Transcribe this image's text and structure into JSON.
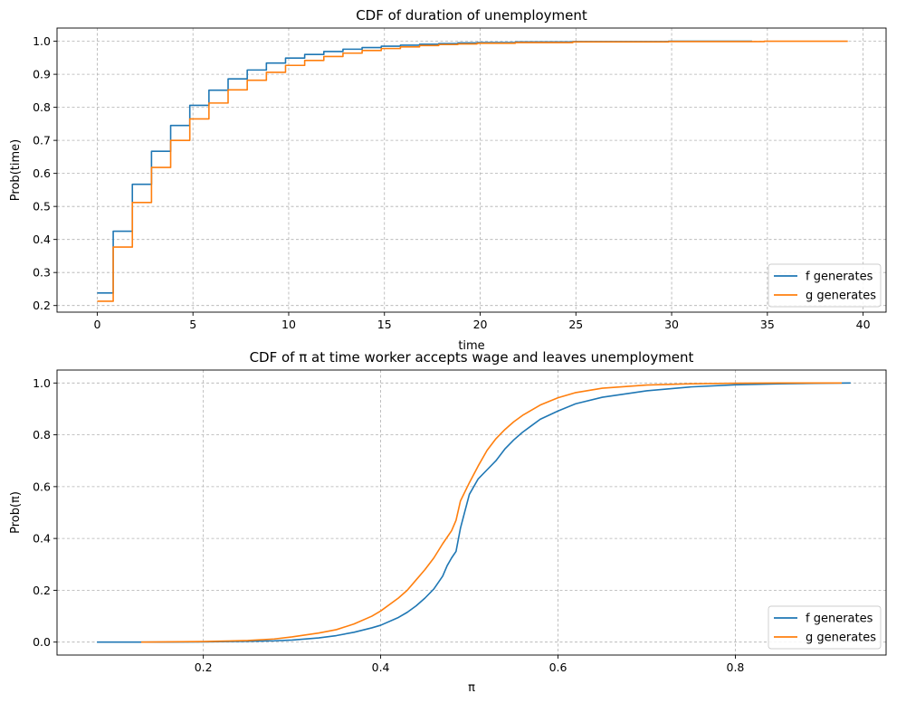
{
  "chart_data": [
    {
      "type": "line",
      "title": "CDF of duration of unemployment",
      "xlabel": "time",
      "ylabel": "Prob(time)",
      "xlim": [
        -2.1,
        41.2
      ],
      "ylim": [
        0.18,
        1.04
      ],
      "xticks": [
        0,
        5,
        10,
        15,
        20,
        25,
        30,
        35,
        40
      ],
      "yticks": [
        0.2,
        0.3,
        0.4,
        0.5,
        0.6,
        0.7,
        0.8,
        0.9,
        1.0
      ],
      "tick_decimals": 1,
      "grid": true,
      "step": true,
      "legend_position": "lower-right",
      "series": [
        {
          "name": "f generates",
          "color": "#1f77b4",
          "x": [
            0,
            1,
            2,
            3,
            4,
            5,
            6,
            7,
            8,
            9,
            10,
            11,
            12,
            13,
            14,
            15,
            16,
            17,
            18,
            19,
            20,
            22,
            25,
            30,
            34.2
          ],
          "y": [
            0.238,
            0.425,
            0.567,
            0.667,
            0.745,
            0.806,
            0.852,
            0.886,
            0.913,
            0.934,
            0.949,
            0.96,
            0.969,
            0.976,
            0.981,
            0.985,
            0.988,
            0.991,
            0.993,
            0.995,
            0.996,
            0.998,
            0.999,
            1.0,
            1.0
          ]
        },
        {
          "name": "g generates",
          "color": "#ff7f0e",
          "x": [
            0,
            1,
            2,
            3,
            4,
            5,
            6,
            7,
            8,
            9,
            10,
            11,
            12,
            13,
            14,
            15,
            16,
            17,
            18,
            19,
            20,
            22,
            25,
            30,
            35,
            39.2
          ],
          "y": [
            0.213,
            0.377,
            0.512,
            0.618,
            0.7,
            0.765,
            0.813,
            0.853,
            0.882,
            0.906,
            0.927,
            0.942,
            0.954,
            0.964,
            0.972,
            0.978,
            0.983,
            0.987,
            0.99,
            0.992,
            0.994,
            0.996,
            0.998,
            0.999,
            1.0,
            1.0
          ]
        }
      ]
    },
    {
      "type": "line",
      "title": "CDF of π at time worker accepts wage and leaves unemployment",
      "xlabel": "π",
      "ylabel": "Prob(π)",
      "xlim": [
        0.035,
        0.97
      ],
      "ylim": [
        -0.05,
        1.05
      ],
      "xticks": [
        0.2,
        0.4,
        0.6,
        0.8
      ],
      "yticks": [
        0.0,
        0.2,
        0.4,
        0.6,
        0.8,
        1.0
      ],
      "tick_decimals": 1,
      "grid": true,
      "step": false,
      "legend_position": "lower-right",
      "series": [
        {
          "name": "f generates",
          "color": "#1f77b4",
          "x": [
            0.08,
            0.15,
            0.2,
            0.25,
            0.28,
            0.3,
            0.33,
            0.35,
            0.37,
            0.39,
            0.4,
            0.42,
            0.43,
            0.44,
            0.45,
            0.46,
            0.47,
            0.475,
            0.48,
            0.485,
            0.49,
            0.5,
            0.51,
            0.52,
            0.53,
            0.54,
            0.55,
            0.56,
            0.57,
            0.58,
            0.6,
            0.62,
            0.65,
            0.7,
            0.75,
            0.8,
            0.85,
            0.9,
            0.93
          ],
          "y": [
            0.0,
            0.0,
            0.001,
            0.003,
            0.005,
            0.008,
            0.016,
            0.025,
            0.038,
            0.055,
            0.065,
            0.095,
            0.115,
            0.14,
            0.17,
            0.205,
            0.255,
            0.295,
            0.325,
            0.35,
            0.44,
            0.57,
            0.63,
            0.665,
            0.7,
            0.745,
            0.78,
            0.81,
            0.835,
            0.86,
            0.892,
            0.92,
            0.945,
            0.97,
            0.985,
            0.993,
            0.997,
            0.999,
            1.0
          ]
        },
        {
          "name": "g generates",
          "color": "#ff7f0e",
          "x": [
            0.13,
            0.2,
            0.25,
            0.28,
            0.3,
            0.33,
            0.35,
            0.37,
            0.39,
            0.4,
            0.42,
            0.43,
            0.44,
            0.45,
            0.46,
            0.47,
            0.48,
            0.485,
            0.49,
            0.5,
            0.51,
            0.52,
            0.53,
            0.54,
            0.55,
            0.56,
            0.58,
            0.6,
            0.62,
            0.65,
            0.7,
            0.75,
            0.8,
            0.85,
            0.9,
            0.92
          ],
          "y": [
            0.0,
            0.002,
            0.006,
            0.012,
            0.02,
            0.035,
            0.048,
            0.07,
            0.1,
            0.12,
            0.17,
            0.2,
            0.24,
            0.28,
            0.325,
            0.38,
            0.43,
            0.47,
            0.545,
            0.615,
            0.68,
            0.74,
            0.785,
            0.82,
            0.85,
            0.875,
            0.915,
            0.943,
            0.963,
            0.98,
            0.992,
            0.997,
            0.999,
            1.0,
            1.0,
            1.0
          ]
        }
      ]
    }
  ]
}
